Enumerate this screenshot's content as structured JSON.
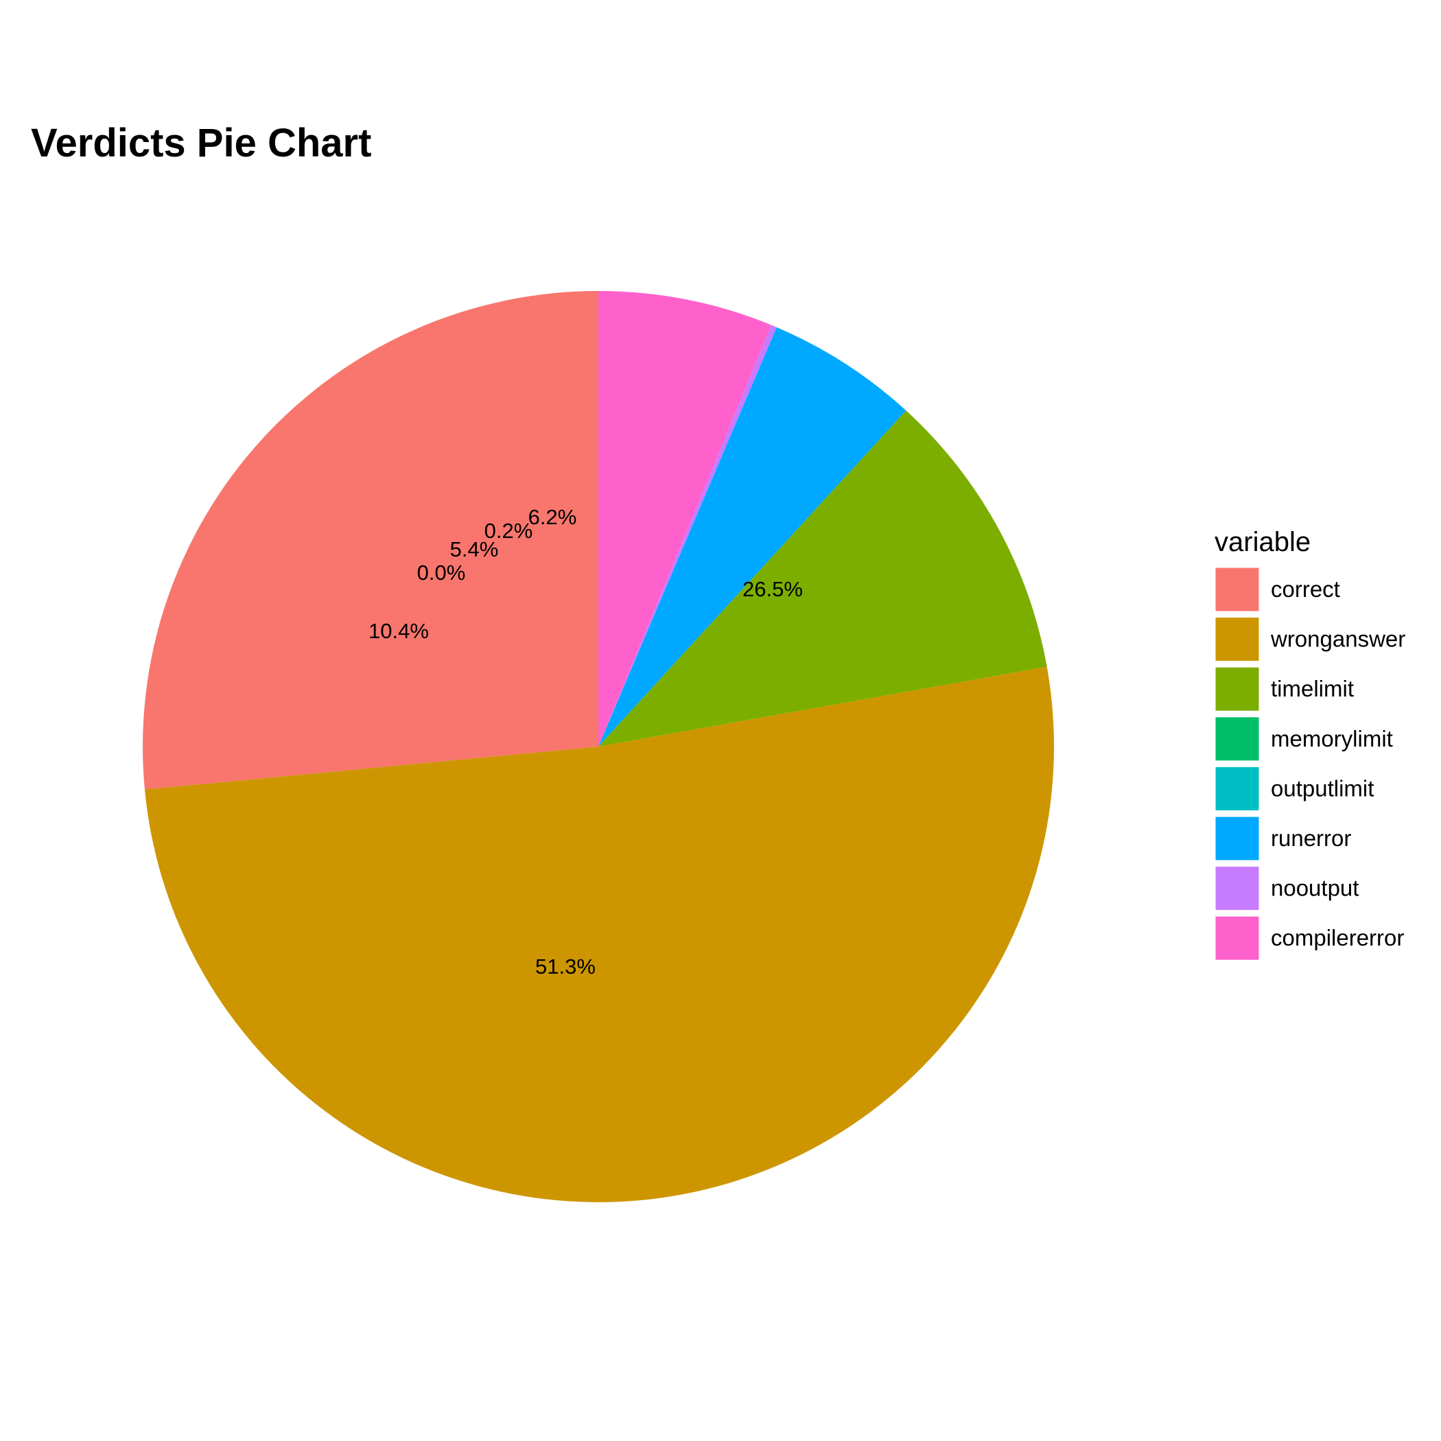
{
  "chart_data": {
    "type": "pie",
    "title": "Verdicts Pie Chart",
    "legend_title": "variable",
    "legend_position": "right",
    "slices": [
      {
        "name": "correct",
        "value": 26.5,
        "label": "26.5%",
        "color": "#F8766D"
      },
      {
        "name": "wronganswer",
        "value": 51.3,
        "label": "51.3%",
        "color": "#CD9600"
      },
      {
        "name": "timelimit",
        "value": 10.4,
        "label": "10.4%",
        "color": "#7CAE00"
      },
      {
        "name": "memorylimit",
        "value": 0.0,
        "label": "0.0%",
        "color": "#00BE67"
      },
      {
        "name": "outputlimit",
        "value": 0.0,
        "label": "",
        "color": "#00BFC4"
      },
      {
        "name": "runerror",
        "value": 5.4,
        "label": "5.4%",
        "color": "#00A9FF"
      },
      {
        "name": "nooutput",
        "value": 0.2,
        "label": "0.2%",
        "color": "#C77CFF"
      },
      {
        "name": "compilererror",
        "value": 6.2,
        "label": "6.2%",
        "color": "#FF61CC"
      }
    ]
  }
}
